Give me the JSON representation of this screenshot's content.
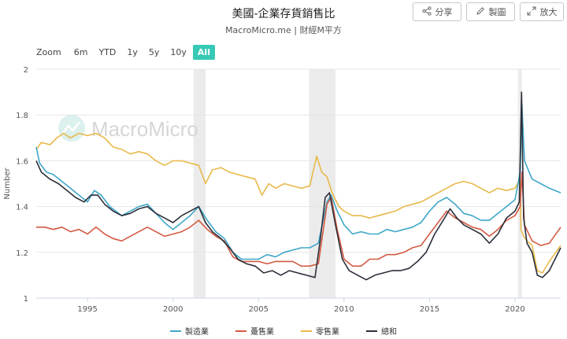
{
  "header": {
    "title": "美國-企業存貨銷售比",
    "subtitle": "MacroMicro.me | 財經M平方"
  },
  "toolbar": {
    "share": {
      "label": "分享",
      "icon": "share-icon"
    },
    "draw": {
      "label": "製圖",
      "icon": "pencil-icon"
    },
    "expand": {
      "label": "放大",
      "icon": "expand-icon"
    }
  },
  "zoom": {
    "label": "Zoom",
    "options": [
      "6m",
      "YTD",
      "1y",
      "5y",
      "10y",
      "All"
    ],
    "active": "All"
  },
  "watermark": "MacroMicro",
  "colors": {
    "manufacturing": "#3fa7c8",
    "wholesale": "#d35a43",
    "retail": "#e8b94a",
    "total": "#2b2f3a",
    "recession": "#ebebeb"
  },
  "chart_data": {
    "type": "line",
    "title": "美國-企業存貨銷售比",
    "xlabel": "",
    "ylabel": "Number",
    "ylim": [
      1,
      2
    ],
    "xlim": [
      1992.0,
      2022.67
    ],
    "yticks": [
      "1",
      "1.2",
      "1.4",
      "1.6",
      "1.8",
      "2"
    ],
    "xticks": [
      "1995",
      "2000",
      "2005",
      "2010",
      "2015",
      "2020"
    ],
    "grid": true,
    "legend_position": "bottom",
    "recessions": [
      [
        2001.2,
        2001.9
      ],
      [
        2007.95,
        2009.5
      ],
      [
        2020.17,
        2020.4
      ]
    ],
    "series": [
      {
        "name": "製造業",
        "color": "#3fa7c8",
        "points": [
          [
            1992.0,
            1.66
          ],
          [
            1992.2,
            1.59
          ],
          [
            1992.6,
            1.55
          ],
          [
            1993.0,
            1.54
          ],
          [
            1993.5,
            1.51
          ],
          [
            1994.0,
            1.48
          ],
          [
            1994.5,
            1.45
          ],
          [
            1995.0,
            1.42
          ],
          [
            1995.4,
            1.47
          ],
          [
            1995.8,
            1.45
          ],
          [
            1996.3,
            1.4
          ],
          [
            1997.0,
            1.36
          ],
          [
            1997.5,
            1.38
          ],
          [
            1998.0,
            1.4
          ],
          [
            1998.5,
            1.41
          ],
          [
            1999.0,
            1.37
          ],
          [
            1999.5,
            1.33
          ],
          [
            2000.0,
            1.3
          ],
          [
            2000.5,
            1.33
          ],
          [
            2001.0,
            1.36
          ],
          [
            2001.5,
            1.4
          ],
          [
            2002.0,
            1.34
          ],
          [
            2002.5,
            1.29
          ],
          [
            2003.0,
            1.26
          ],
          [
            2003.5,
            1.2
          ],
          [
            2004.0,
            1.17
          ],
          [
            2004.5,
            1.17
          ],
          [
            2005.0,
            1.17
          ],
          [
            2005.5,
            1.19
          ],
          [
            2006.0,
            1.18
          ],
          [
            2006.5,
            1.2
          ],
          [
            2007.0,
            1.21
          ],
          [
            2007.5,
            1.22
          ],
          [
            2008.0,
            1.22
          ],
          [
            2008.5,
            1.24
          ],
          [
            2009.0,
            1.42
          ],
          [
            2009.25,
            1.45
          ],
          [
            2009.6,
            1.38
          ],
          [
            2010.0,
            1.32
          ],
          [
            2010.5,
            1.28
          ],
          [
            2011.0,
            1.29
          ],
          [
            2011.5,
            1.28
          ],
          [
            2012.0,
            1.28
          ],
          [
            2012.5,
            1.3
          ],
          [
            2013.0,
            1.29
          ],
          [
            2013.5,
            1.3
          ],
          [
            2014.0,
            1.31
          ],
          [
            2014.5,
            1.33
          ],
          [
            2015.0,
            1.38
          ],
          [
            2015.5,
            1.42
          ],
          [
            2016.0,
            1.44
          ],
          [
            2016.5,
            1.41
          ],
          [
            2017.0,
            1.37
          ],
          [
            2017.5,
            1.36
          ],
          [
            2018.0,
            1.34
          ],
          [
            2018.5,
            1.34
          ],
          [
            2019.0,
            1.37
          ],
          [
            2019.5,
            1.4
          ],
          [
            2020.0,
            1.43
          ],
          [
            2020.3,
            1.55
          ],
          [
            2020.4,
            1.85
          ],
          [
            2020.55,
            1.6
          ],
          [
            2021.0,
            1.52
          ],
          [
            2021.5,
            1.5
          ],
          [
            2022.0,
            1.48
          ],
          [
            2022.67,
            1.46
          ]
        ]
      },
      {
        "name": "躉售業",
        "color": "#d35a43",
        "points": [
          [
            1992.0,
            1.31
          ],
          [
            1992.5,
            1.31
          ],
          [
            1993.0,
            1.3
          ],
          [
            1993.5,
            1.31
          ],
          [
            1994.0,
            1.29
          ],
          [
            1994.5,
            1.3
          ],
          [
            1995.0,
            1.28
          ],
          [
            1995.5,
            1.31
          ],
          [
            1996.0,
            1.28
          ],
          [
            1996.5,
            1.26
          ],
          [
            1997.0,
            1.25
          ],
          [
            1997.5,
            1.27
          ],
          [
            1998.0,
            1.29
          ],
          [
            1998.5,
            1.31
          ],
          [
            1999.0,
            1.29
          ],
          [
            1999.5,
            1.27
          ],
          [
            2000.0,
            1.28
          ],
          [
            2000.5,
            1.29
          ],
          [
            2001.0,
            1.31
          ],
          [
            2001.5,
            1.34
          ],
          [
            2002.0,
            1.3
          ],
          [
            2002.5,
            1.27
          ],
          [
            2003.0,
            1.25
          ],
          [
            2003.5,
            1.18
          ],
          [
            2004.0,
            1.16
          ],
          [
            2004.5,
            1.16
          ],
          [
            2005.0,
            1.16
          ],
          [
            2005.5,
            1.15
          ],
          [
            2006.0,
            1.16
          ],
          [
            2006.5,
            1.16
          ],
          [
            2007.0,
            1.16
          ],
          [
            2007.5,
            1.14
          ],
          [
            2008.0,
            1.14
          ],
          [
            2008.5,
            1.15
          ],
          [
            2009.0,
            1.41
          ],
          [
            2009.25,
            1.44
          ],
          [
            2009.6,
            1.3
          ],
          [
            2010.0,
            1.17
          ],
          [
            2010.5,
            1.14
          ],
          [
            2011.0,
            1.14
          ],
          [
            2011.5,
            1.17
          ],
          [
            2012.0,
            1.17
          ],
          [
            2012.5,
            1.19
          ],
          [
            2013.0,
            1.19
          ],
          [
            2013.5,
            1.2
          ],
          [
            2014.0,
            1.22
          ],
          [
            2014.5,
            1.23
          ],
          [
            2015.0,
            1.28
          ],
          [
            2015.5,
            1.33
          ],
          [
            2016.0,
            1.38
          ],
          [
            2016.5,
            1.35
          ],
          [
            2017.0,
            1.33
          ],
          [
            2017.5,
            1.31
          ],
          [
            2018.0,
            1.3
          ],
          [
            2018.5,
            1.27
          ],
          [
            2019.0,
            1.3
          ],
          [
            2019.5,
            1.34
          ],
          [
            2020.0,
            1.36
          ],
          [
            2020.3,
            1.4
          ],
          [
            2020.4,
            1.55
          ],
          [
            2020.55,
            1.32
          ],
          [
            2021.0,
            1.25
          ],
          [
            2021.5,
            1.23
          ],
          [
            2022.0,
            1.24
          ],
          [
            2022.67,
            1.31
          ]
        ]
      },
      {
        "name": "零售業",
        "color": "#e8b94a",
        "points": [
          [
            1992.0,
            1.65
          ],
          [
            1992.3,
            1.68
          ],
          [
            1992.8,
            1.67
          ],
          [
            1993.2,
            1.7
          ],
          [
            1993.6,
            1.72
          ],
          [
            1994.0,
            1.7
          ],
          [
            1994.5,
            1.72
          ],
          [
            1995.0,
            1.71
          ],
          [
            1995.5,
            1.72
          ],
          [
            1996.0,
            1.7
          ],
          [
            1996.5,
            1.66
          ],
          [
            1997.0,
            1.65
          ],
          [
            1997.5,
            1.63
          ],
          [
            1998.0,
            1.64
          ],
          [
            1998.5,
            1.63
          ],
          [
            1999.0,
            1.6
          ],
          [
            1999.5,
            1.58
          ],
          [
            2000.0,
            1.6
          ],
          [
            2000.5,
            1.6
          ],
          [
            2001.0,
            1.59
          ],
          [
            2001.5,
            1.58
          ],
          [
            2001.9,
            1.5
          ],
          [
            2002.3,
            1.56
          ],
          [
            2002.8,
            1.57
          ],
          [
            2003.3,
            1.55
          ],
          [
            2003.8,
            1.54
          ],
          [
            2004.3,
            1.53
          ],
          [
            2004.8,
            1.52
          ],
          [
            2005.2,
            1.45
          ],
          [
            2005.6,
            1.5
          ],
          [
            2006.0,
            1.48
          ],
          [
            2006.5,
            1.5
          ],
          [
            2007.0,
            1.49
          ],
          [
            2007.5,
            1.48
          ],
          [
            2008.0,
            1.49
          ],
          [
            2008.4,
            1.62
          ],
          [
            2008.7,
            1.55
          ],
          [
            2009.0,
            1.53
          ],
          [
            2009.3,
            1.46
          ],
          [
            2009.7,
            1.4
          ],
          [
            2010.0,
            1.38
          ],
          [
            2010.5,
            1.36
          ],
          [
            2011.0,
            1.36
          ],
          [
            2011.5,
            1.35
          ],
          [
            2012.0,
            1.36
          ],
          [
            2012.5,
            1.37
          ],
          [
            2013.0,
            1.38
          ],
          [
            2013.5,
            1.4
          ],
          [
            2014.0,
            1.41
          ],
          [
            2014.5,
            1.42
          ],
          [
            2015.0,
            1.44
          ],
          [
            2015.5,
            1.46
          ],
          [
            2016.0,
            1.48
          ],
          [
            2016.5,
            1.5
          ],
          [
            2017.0,
            1.51
          ],
          [
            2017.5,
            1.5
          ],
          [
            2018.0,
            1.48
          ],
          [
            2018.5,
            1.46
          ],
          [
            2019.0,
            1.48
          ],
          [
            2019.5,
            1.47
          ],
          [
            2020.0,
            1.48
          ],
          [
            2020.28,
            1.52
          ],
          [
            2020.35,
            1.3
          ],
          [
            2020.5,
            1.27
          ],
          [
            2020.7,
            1.25
          ],
          [
            2021.0,
            1.23
          ],
          [
            2021.3,
            1.12
          ],
          [
            2021.6,
            1.11
          ],
          [
            2022.0,
            1.16
          ],
          [
            2022.67,
            1.23
          ]
        ]
      },
      {
        "name": "總和",
        "color": "#2b2f3a",
        "points": [
          [
            1992.0,
            1.6
          ],
          [
            1992.3,
            1.55
          ],
          [
            1992.8,
            1.52
          ],
          [
            1993.3,
            1.5
          ],
          [
            1993.8,
            1.47
          ],
          [
            1994.3,
            1.44
          ],
          [
            1994.8,
            1.42
          ],
          [
            1995.2,
            1.45
          ],
          [
            1995.6,
            1.45
          ],
          [
            1996.0,
            1.41
          ],
          [
            1996.5,
            1.38
          ],
          [
            1997.0,
            1.36
          ],
          [
            1997.5,
            1.37
          ],
          [
            1998.0,
            1.39
          ],
          [
            1998.5,
            1.4
          ],
          [
            1999.0,
            1.37
          ],
          [
            1999.5,
            1.35
          ],
          [
            2000.0,
            1.33
          ],
          [
            2000.5,
            1.36
          ],
          [
            2001.0,
            1.38
          ],
          [
            2001.5,
            1.4
          ],
          [
            2001.9,
            1.33
          ],
          [
            2002.3,
            1.29
          ],
          [
            2002.8,
            1.26
          ],
          [
            2003.3,
            1.22
          ],
          [
            2003.8,
            1.17
          ],
          [
            2004.3,
            1.15
          ],
          [
            2004.8,
            1.14
          ],
          [
            2005.3,
            1.11
          ],
          [
            2005.8,
            1.12
          ],
          [
            2006.3,
            1.1
          ],
          [
            2006.8,
            1.12
          ],
          [
            2007.3,
            1.11
          ],
          [
            2007.8,
            1.1
          ],
          [
            2008.3,
            1.09
          ],
          [
            2008.6,
            1.25
          ],
          [
            2008.9,
            1.44
          ],
          [
            2009.15,
            1.46
          ],
          [
            2009.5,
            1.32
          ],
          [
            2009.9,
            1.17
          ],
          [
            2010.3,
            1.12
          ],
          [
            2010.8,
            1.1
          ],
          [
            2011.3,
            1.08
          ],
          [
            2011.8,
            1.1
          ],
          [
            2012.3,
            1.11
          ],
          [
            2012.8,
            1.12
          ],
          [
            2013.3,
            1.12
          ],
          [
            2013.8,
            1.13
          ],
          [
            2014.3,
            1.16
          ],
          [
            2014.8,
            1.2
          ],
          [
            2015.3,
            1.28
          ],
          [
            2015.8,
            1.34
          ],
          [
            2016.2,
            1.39
          ],
          [
            2016.6,
            1.35
          ],
          [
            2017.0,
            1.32
          ],
          [
            2017.5,
            1.3
          ],
          [
            2018.0,
            1.28
          ],
          [
            2018.5,
            1.24
          ],
          [
            2019.0,
            1.28
          ],
          [
            2019.5,
            1.35
          ],
          [
            2020.0,
            1.38
          ],
          [
            2020.25,
            1.42
          ],
          [
            2020.38,
            1.9
          ],
          [
            2020.5,
            1.35
          ],
          [
            2020.7,
            1.24
          ],
          [
            2021.0,
            1.2
          ],
          [
            2021.3,
            1.1
          ],
          [
            2021.6,
            1.09
          ],
          [
            2022.0,
            1.12
          ],
          [
            2022.67,
            1.22
          ]
        ]
      }
    ]
  }
}
